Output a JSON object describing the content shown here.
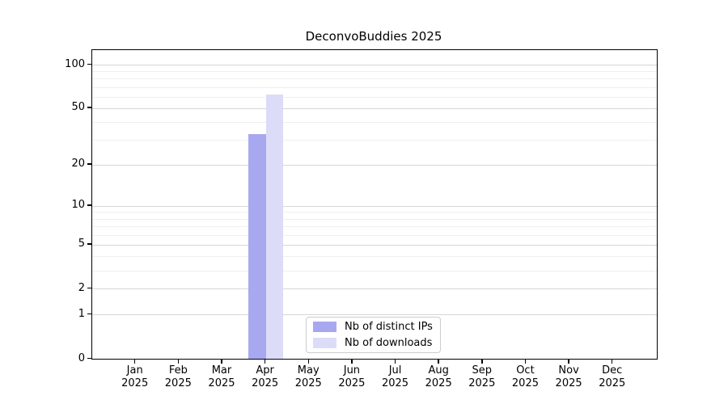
{
  "chart_data": {
    "type": "bar",
    "title": "DeconvoBuddies 2025",
    "year": "2025",
    "categories": [
      "Jan",
      "Feb",
      "Mar",
      "Apr",
      "May",
      "Jun",
      "Jul",
      "Aug",
      "Sep",
      "Oct",
      "Nov",
      "Dec"
    ],
    "series": [
      {
        "name": "Nb of distinct IPs",
        "color": "#a8a8f0",
        "values": [
          0,
          0,
          0,
          33,
          0,
          0,
          0,
          0,
          0,
          0,
          0,
          0
        ]
      },
      {
        "name": "Nb of downloads",
        "color": "#dcdcf8",
        "values": [
          0,
          0,
          0,
          62,
          0,
          0,
          0,
          0,
          0,
          0,
          0,
          0
        ]
      }
    ],
    "y_scale": "log1p",
    "y_axis": {
      "major_ticks": [
        0,
        1,
        2,
        5,
        10,
        20,
        50,
        100
      ],
      "minor_ticks": [
        3,
        4,
        6,
        7,
        8,
        9,
        30,
        40,
        60,
        70,
        80,
        90
      ],
      "ylim_top": 127
    },
    "x_axis": {
      "label_line2": "2025"
    },
    "grid": {
      "major_color": "#d6d6d6",
      "minor_color": "#efefef"
    },
    "legend": {
      "position": "lower-center",
      "entries": [
        "Nb of distinct IPs",
        "Nb of downloads"
      ]
    },
    "colors": {
      "spine": "#000000",
      "text": "#000000",
      "background": "#ffffff"
    }
  }
}
